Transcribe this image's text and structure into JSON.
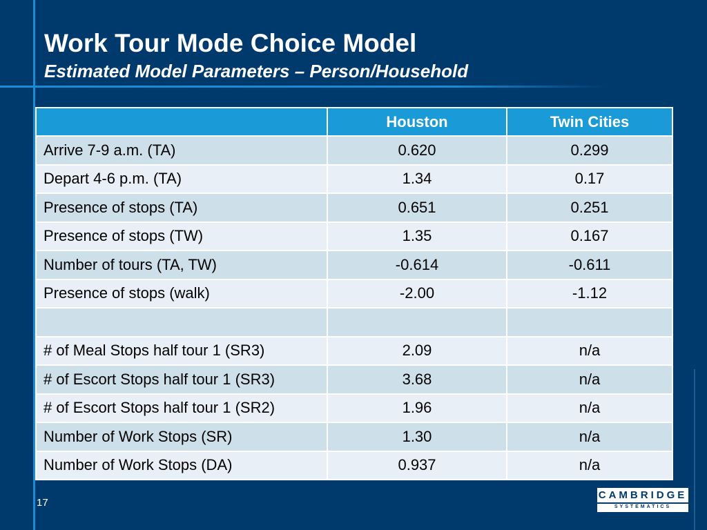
{
  "slide": {
    "title": "Work Tour Mode Choice Model",
    "subtitle": "Estimated Model Parameters – Person/Household",
    "page_number": "17"
  },
  "table": {
    "headers": [
      "",
      "Houston",
      "Twin Cities"
    ],
    "rows": [
      [
        "Arrive 7-9 a.m. (TA)",
        "0.620",
        "0.299"
      ],
      [
        "Depart 4-6 p.m. (TA)",
        "1.34",
        "0.17"
      ],
      [
        "Presence of stops (TA)",
        "0.651",
        "0.251"
      ],
      [
        "Presence of stops (TW)",
        "1.35",
        "0.167"
      ],
      [
        "Number of tours (TA, TW)",
        "-0.614",
        "-0.611"
      ],
      [
        "Presence of stops (walk)",
        "-2.00",
        "-1.12"
      ],
      [
        "",
        "",
        ""
      ],
      [
        "# of Meal Stops half tour 1 (SR3)",
        "2.09",
        "n/a"
      ],
      [
        "# of Escort Stops half tour 1 (SR3)",
        "3.68",
        "n/a"
      ],
      [
        "# of Escort Stops half tour 1 (SR2)",
        "1.96",
        "n/a"
      ],
      [
        "Number of Work Stops (SR)",
        "1.30",
        "n/a"
      ],
      [
        "Number of Work Stops (DA)",
        "0.937",
        "n/a"
      ]
    ]
  },
  "logo": {
    "name": "CAMBRIDGE",
    "tagline": "SYSTEMATICS"
  },
  "colors": {
    "background": "#00396b",
    "accent_line": "#1a8bd4",
    "header_fill": "#1a9ad6",
    "row_odd": "#cddfe9",
    "row_even": "#e8eff6"
  }
}
